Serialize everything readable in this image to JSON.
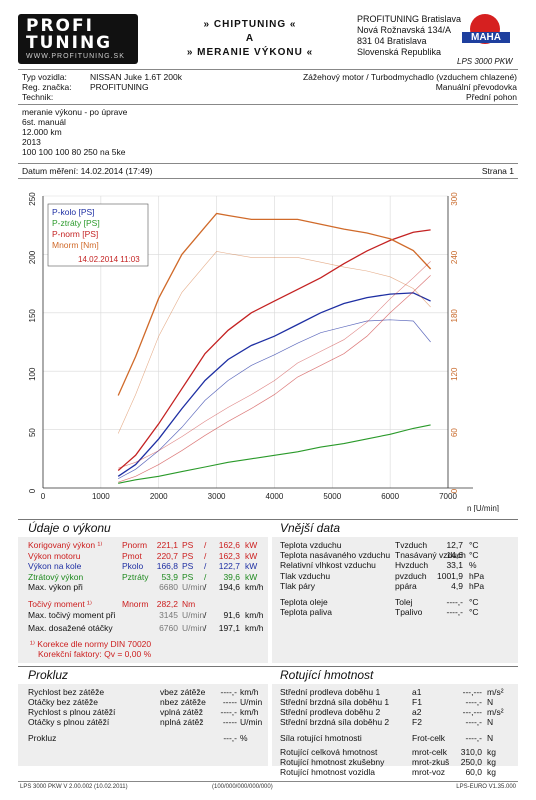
{
  "header": {
    "logo_line1": "PROFI",
    "logo_line2": "TUNING",
    "logo_tagline": "WWW.PROFITUNING.SK",
    "title_line1": "» CHIPTUNING «",
    "title_line2": "A",
    "title_line3": "» MERANIE VÝKONU «",
    "company_name": "PROFITUNING Bratislava",
    "street": "Nová Rožnavská 134/A",
    "city": "831 04 Bratislava",
    "country": "Slovenská Republika",
    "maha_label": "MAHA",
    "lps_label": "LPS 3000 PKW"
  },
  "vehicle": {
    "type_label": "Typ vozidla:",
    "type_value": "NISSAN Juke 1.6T 200k",
    "reg_label": "Reg. značka:",
    "reg_value": "PROFITUNING",
    "tech_label": "Technik:",
    "engine": "Zážehový motor / Turbodmychadlo (vzduchem chlazené)",
    "gearbox": "Manuální převodovka",
    "drive": "Přední pohon"
  },
  "notes": [
    "meranie výkonu - po úprave",
    "6st. manuál",
    "12.000 km",
    "2013",
    "100 100 100 80 250 na 5ke"
  ],
  "datum": {
    "label": "Datum měření: 14.02.2014 (17:49)",
    "page": "Strana 1"
  },
  "chart_data": {
    "type": "line",
    "x_unit": "n [U/min]",
    "xlim": [
      0,
      7000
    ],
    "x_ticks": [
      "0",
      "1000",
      "2000",
      "3000",
      "4000",
      "5000",
      "6000",
      "7000"
    ],
    "ylim_left": [
      0,
      250
    ],
    "y_ticks_left": [
      "0",
      "50",
      "100",
      "150",
      "200",
      "250"
    ],
    "ylim_right": [
      0,
      300
    ],
    "y_ticks_right": [
      "0",
      "60",
      "120",
      "180",
      "240",
      "300"
    ],
    "legend": [
      "P-kolo [PS]",
      "P-ztráty [PS]",
      "P-norm [PS]",
      "Mnorm [Nm]"
    ],
    "legend_date": "14.02.2014 11:03",
    "colors": {
      "kolo": "#1e2fa3",
      "ztraty": "#2a9a2a",
      "norm": "#c42222",
      "torque": "#d06a2a"
    },
    "series": [
      {
        "name": "P-norm [PS]",
        "x": [
          1300,
          1600,
          2000,
          2400,
          2800,
          3200,
          3600,
          4000,
          4400,
          4800,
          5200,
          5600,
          6000,
          6400,
          6700
        ],
        "y": [
          15,
          28,
          55,
          85,
          115,
          135,
          150,
          160,
          170,
          180,
          192,
          203,
          212,
          219,
          221
        ]
      },
      {
        "name": "P-kolo [PS]",
        "x": [
          1300,
          1600,
          2000,
          2400,
          2800,
          3200,
          3600,
          4000,
          4400,
          4800,
          5200,
          5600,
          6000,
          6400,
          6700
        ],
        "y": [
          10,
          20,
          42,
          68,
          92,
          110,
          122,
          130,
          140,
          150,
          158,
          163,
          166,
          167,
          160
        ]
      },
      {
        "name": "P-ztráty [PS]",
        "x": [
          1300,
          1600,
          2000,
          2400,
          2800,
          3200,
          3600,
          4000,
          4400,
          4800,
          5200,
          5600,
          6000,
          6400,
          6700
        ],
        "y": [
          4,
          7,
          10,
          14,
          18,
          22,
          25,
          28,
          31,
          35,
          38,
          42,
          46,
          51,
          54
        ]
      },
      {
        "name": "Mnorm [Nm]",
        "x": [
          1300,
          1600,
          2000,
          2400,
          2800,
          3000,
          3200,
          3600,
          4000,
          4400,
          4800,
          5200,
          5600,
          6000,
          6400,
          6700
        ],
        "y": [
          95,
          135,
          195,
          240,
          268,
          282,
          280,
          276,
          276,
          276,
          271,
          266,
          262,
          256,
          244,
          225
        ]
      },
      {
        "name": "",
        "x": [
          1300,
          1600,
          2000,
          2400,
          2800,
          3200,
          3600,
          4000,
          4400,
          4800,
          5200,
          5600,
          6000,
          6400,
          6700
        ],
        "y": [
          8,
          16,
          32,
          52,
          75,
          92,
          105,
          114,
          124,
          133,
          138,
          143,
          144,
          143,
          125
        ]
      },
      {
        "name": "",
        "x": [
          1300,
          1600,
          2000,
          2400,
          2800,
          3200,
          3600,
          4000,
          4400,
          4800,
          5200,
          5600,
          6000,
          6400,
          6700
        ],
        "y": [
          5,
          10,
          20,
          32,
          45,
          57,
          68,
          80,
          95,
          105,
          115,
          130,
          150,
          168,
          182
        ]
      }
    ]
  },
  "udaje": {
    "title": "Údaje o výkonu",
    "rows": [
      {
        "label": "Korigovaný výkon ¹⁾",
        "sym": "Pnorm",
        "v1": "221,1",
        "u1": "PS",
        "sep": "/",
        "v2": "162,6",
        "u2": "kW"
      },
      {
        "label": "Výkon motoru",
        "sym": "Pmot",
        "v1": "220,7",
        "u1": "PS",
        "sep": "/",
        "v2": "162,3",
        "u2": "kW"
      },
      {
        "label": "Výkon na kole",
        "sym": "Pkolo",
        "v1": "166,8",
        "u1": "PS",
        "sep": "/",
        "v2": "122,7",
        "u2": "kW"
      },
      {
        "label": "Ztrátový výkon",
        "sym": "Pztráty",
        "v1": "53,9",
        "u1": "PS",
        "sep": "/",
        "v2": "39,6",
        "u2": "kW"
      },
      {
        "label": "Max. výkon při",
        "sym": "",
        "v1": "6680",
        "u1": "U/min",
        "sep": "/",
        "v2": "194,6",
        "u2": "km/h"
      }
    ],
    "torque": {
      "label": "Točivý moment ¹⁾",
      "sym": "Mnorm",
      "v": "282,2",
      "u": "Nm"
    },
    "torque_at": {
      "label": "Max. točivý moment při",
      "v1": "3145",
      "u1": "U/min",
      "sep": "/",
      "v2": "91,6",
      "u2": "km/h"
    },
    "max_rpm": {
      "label": "Max. dosažené otáčky",
      "v1": "6760",
      "u1": "U/min",
      "sep": "/",
      "v2": "197,1",
      "u2": "km/h"
    },
    "note1": "¹⁾ Korekce dle normy DIN 70020",
    "note2": "Korekční faktory: Qv = 0,00 %"
  },
  "vnejsi": {
    "title": "Vnější data",
    "rows": [
      {
        "label": "Teplota vzduchu",
        "sym": "Tvzduch",
        "v": "12,7",
        "u": "°C"
      },
      {
        "label": "Teplota nasávaného vzduchu",
        "sym": "Tnasávaný vzduch",
        "v": "14,6",
        "u": "°C"
      },
      {
        "label": "Relativní vlhkost vzduchu",
        "sym": "Hvzduch",
        "v": "33,1",
        "u": "%"
      },
      {
        "label": "Tlak vzduchu",
        "sym": "pvzduch",
        "v": "1001,9",
        "u": "hPa"
      },
      {
        "label": "Tlak páry",
        "sym": "ppára",
        "v": "4,9",
        "u": "hPa"
      },
      {
        "label": "Teplota oleje",
        "sym": "Tolej",
        "v": "----,-",
        "u": "°C"
      },
      {
        "label": "Teplota paliva",
        "sym": "Tpalivo",
        "v": "----,-",
        "u": "°C"
      }
    ]
  },
  "prokluz": {
    "title": "Prokluz",
    "rows": [
      {
        "label": "Rychlost bez zátěže",
        "sym": "vbez zátěže",
        "v": "----,-",
        "u": "km/h"
      },
      {
        "label": "Otáčky bez zátěže",
        "sym": "nbez zátěže",
        "v": "-----",
        "u": "U/min"
      },
      {
        "label": "Rychlost s plnou zátěží",
        "sym": "vplná zátěž",
        "v": "----,-",
        "u": "km/h"
      },
      {
        "label": "Otáčky s plnou zátěží",
        "sym": "nplná zátěž",
        "v": "-----",
        "u": "U/min"
      },
      {
        "label": "Prokluz",
        "sym": "",
        "v": "---,-",
        "u": "%"
      }
    ]
  },
  "rotacni": {
    "title": "Rotující hmotnost",
    "rows": [
      {
        "label": "Střední prodleva doběhu 1",
        "sym": "a1",
        "v": "---,---",
        "u": "m/s²"
      },
      {
        "label": "Střední brzdná síla doběhu 1",
        "sym": "F1",
        "v": "----,-",
        "u": "N"
      },
      {
        "label": "Střední prodleva doběhu 2",
        "sym": "a2",
        "v": "---,---",
        "u": "m/s²"
      },
      {
        "label": "Střední brzdná síla doběhu 2",
        "sym": "F2",
        "v": "----,-",
        "u": "N"
      },
      {
        "label": "Síla rotující hmotnosti",
        "sym": "Frot-celk",
        "v": "----,-",
        "u": "N"
      },
      {
        "label": "Rotující celková hmotnost",
        "sym": "mrot-celk",
        "v": "310,0",
        "u": "kg"
      },
      {
        "label": "Rotující hmotnost zkušebny",
        "sym": "mrot-zkuš",
        "v": "250,0",
        "u": "kg"
      },
      {
        "label": "Rotující hmotnost vozidla",
        "sym": "mrot-voz",
        "v": "60,0",
        "u": "kg"
      }
    ]
  },
  "footer": {
    "left": "LPS 3000 PKW V 2.00.002 (10.02.2011)",
    "mid": "(100/000/000/000/000)",
    "right": "LPS-EURO V1.35.000"
  }
}
